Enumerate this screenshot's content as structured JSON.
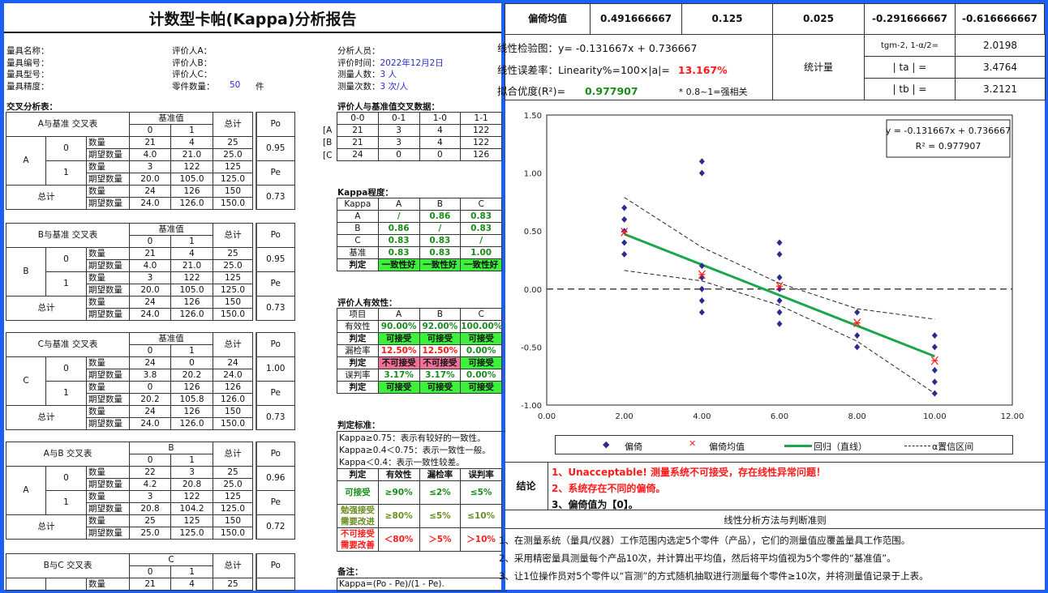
{
  "report": {
    "title": "计数型卡帕(Kappa)分析报告",
    "info_col1": [
      "量具名称：",
      "量具编号：",
      "量具型号：",
      "量具精度："
    ],
    "info_col2": [
      "评价人A：",
      "评价人B：",
      "评价人C："
    ],
    "parts_label": "零件数量：",
    "parts_value": "50",
    "parts_unit": "件",
    "info_col3": [
      {
        "label": "分析人员：",
        "value": ""
      },
      {
        "label": "评价时间：",
        "value": "2022年12月2日"
      },
      {
        "label": "测量人数：",
        "value": "3 人"
      },
      {
        "label": "测量次数：",
        "value": "3 次/人"
      }
    ],
    "cross_section_title": "交叉分析表：",
    "labels": {
      "total": "总计",
      "po": "Po",
      "pe": "Pe",
      "count": "数量",
      "expected": "期望数量"
    },
    "cross_tables": [
      {
        "title": "A与基准  交叉表",
        "ref": "基准值",
        "cols": [
          "0",
          "1"
        ],
        "rater": "A",
        "levels": [
          "0",
          "1"
        ],
        "rows": [
          [
            "21",
            "4",
            "25"
          ],
          [
            "4.0",
            "21.0",
            "25.0"
          ],
          [
            "3",
            "122",
            "125"
          ],
          [
            "20.0",
            "105.0",
            "125.0"
          ],
          [
            "24",
            "126",
            "150"
          ],
          [
            "24.0",
            "126.0",
            "150.0"
          ]
        ],
        "po": "0.95",
        "pe": "0.73"
      },
      {
        "title": "B与基准  交叉表",
        "ref": "基准值",
        "cols": [
          "0",
          "1"
        ],
        "rater": "B",
        "levels": [
          "0",
          "1"
        ],
        "rows": [
          [
            "21",
            "4",
            "25"
          ],
          [
            "4.0",
            "21.0",
            "25.0"
          ],
          [
            "3",
            "122",
            "125"
          ],
          [
            "20.0",
            "105.0",
            "125.0"
          ],
          [
            "24",
            "126",
            "150"
          ],
          [
            "24.0",
            "126.0",
            "150.0"
          ]
        ],
        "po": "0.95",
        "pe": "0.73"
      },
      {
        "title": "C与基准  交叉表",
        "ref": "基准值",
        "cols": [
          "0",
          "1"
        ],
        "rater": "C",
        "levels": [
          "0",
          "1"
        ],
        "rows": [
          [
            "24",
            "0",
            "24"
          ],
          [
            "3.8",
            "20.2",
            "24.0"
          ],
          [
            "0",
            "126",
            "126"
          ],
          [
            "20.2",
            "105.8",
            "126.0"
          ],
          [
            "24",
            "126",
            "150"
          ],
          [
            "24.0",
            "126.0",
            "150.0"
          ]
        ],
        "po": "1.00",
        "pe": "0.73"
      },
      {
        "title": "A与B  交叉表",
        "ref": "B",
        "cols": [
          "0",
          "1"
        ],
        "rater": "A",
        "levels": [
          "0",
          "1"
        ],
        "rows": [
          [
            "22",
            "3",
            "25"
          ],
          [
            "4.2",
            "20.8",
            "25.0"
          ],
          [
            "3",
            "122",
            "125"
          ],
          [
            "20.8",
            "104.2",
            "125.0"
          ],
          [
            "25",
            "125",
            "150"
          ],
          [
            "25.0",
            "125.0",
            "150.0"
          ]
        ],
        "po": "0.96",
        "pe": "0.72"
      },
      {
        "title": "B与C  交叉表",
        "ref": "C",
        "cols": [
          "0",
          "1"
        ],
        "rows": [
          [
            "21",
            "4",
            "25"
          ]
        ]
      }
    ],
    "cross_data": {
      "title": "评价人与基准值交叉数据：",
      "header": [
        "0-0",
        "0-1",
        "1-0",
        "1-1"
      ],
      "rows": [
        {
          "label": "[A",
          "values": [
            "21",
            "3",
            "4",
            "122"
          ]
        },
        {
          "label": "[B",
          "values": [
            "21",
            "3",
            "4",
            "122"
          ]
        },
        {
          "label": "[C",
          "values": [
            "24",
            "0",
            "0",
            "126"
          ]
        }
      ]
    },
    "kappa": {
      "title": "Kappa程度：",
      "header": [
        "Kappa",
        "A",
        "B",
        "C"
      ],
      "rows": [
        {
          "label": "A",
          "values": [
            "/",
            "0.86",
            "0.83"
          ]
        },
        {
          "label": "B",
          "values": [
            "0.86",
            "/",
            "0.83"
          ]
        },
        {
          "label": "C",
          "values": [
            "0.83",
            "0.83",
            "/"
          ]
        },
        {
          "label": "基准",
          "values": [
            "0.83",
            "0.83",
            "1.00"
          ]
        }
      ],
      "verdict_label": "判定",
      "verdicts": [
        "一致性好",
        "一致性好",
        "一致性好"
      ]
    },
    "effectiveness": {
      "title": "评价人有效性：",
      "header": [
        "项目",
        "A",
        "B",
        "C"
      ],
      "rows": [
        {
          "label": "有效性",
          "values": [
            "90.00%",
            "92.00%",
            "100.00%"
          ],
          "pass": [
            true,
            true,
            true
          ]
        },
        {
          "label": "判定",
          "values": [
            "可接受",
            "可接受",
            "可接受"
          ],
          "pass": [
            true,
            true,
            true
          ],
          "verdict": true
        },
        {
          "label": "漏检率",
          "values": [
            "12.50%",
            "12.50%",
            "0.00%"
          ],
          "pass": [
            false,
            false,
            true
          ]
        },
        {
          "label": "判定",
          "values": [
            "不可接受",
            "不可接受",
            "可接受"
          ],
          "pass": [
            false,
            false,
            true
          ],
          "verdict": true
        },
        {
          "label": "误判率",
          "values": [
            "3.17%",
            "3.17%",
            "0.00%"
          ],
          "pass": [
            true,
            true,
            true
          ]
        },
        {
          "label": "判定",
          "values": [
            "可接受",
            "可接受",
            "可接受"
          ],
          "pass": [
            true,
            true,
            true
          ],
          "verdict": true
        }
      ]
    },
    "criteria": {
      "title": "判定标准：",
      "lines": [
        "Kappa≥0.75：表示有较好的一致性。",
        "Kappa≥0.4＜0.75：表示一致性一般。",
        "Kappa＜0.4：表示一致性较差。"
      ],
      "header": [
        "判定",
        "有效性",
        "漏检率",
        "误判率"
      ],
      "rows": [
        {
          "label": "可接受",
          "values": [
            "≥90%",
            "≤2%",
            "≤5%"
          ],
          "color": "#1a8c1a"
        },
        {
          "label": "勉强接受 需要改进",
          "values": [
            "≥80%",
            "≤5%",
            "≤10%"
          ],
          "color": "#6b8e23"
        },
        {
          "label": "不可接受 需要改善",
          "values": [
            "＜80%",
            "＞5%",
            "＞10%"
          ],
          "color": "#ff1a1a"
        }
      ]
    },
    "notes": {
      "title": "备注：",
      "text": "Kappa=(Po - Pe)/(1 - Pe)."
    }
  },
  "linearity": {
    "bias_mean_label": "偏倚均值",
    "bias_means": [
      "0.491666667",
      "0.125",
      "0.025",
      "-0.291666667",
      "-0.616666667"
    ],
    "equation_line": "线性检验图：y= -0.131667x + 0.736667",
    "linearity_label": "线性误差率：Linearity%=100×|a|=",
    "linearity_value": "13.167%",
    "r2_label": "拟合优度(R²)=",
    "r2_value": "0.977907",
    "r2_note": "* 0.8~1=强相关",
    "stat_label": "统计量",
    "stats": [
      {
        "label": "tgm-2, 1-α/2=",
        "value": "2.0198"
      },
      {
        "label": "| ta | =",
        "value": "3.4764"
      },
      {
        "label": "| tb | =",
        "value": "3.2121"
      }
    ],
    "conclusion_label": "结论",
    "conclusions": [
      {
        "text": "1、Unacceptable! 测量系统不可接受，存在线性异常问题！",
        "color": "#ff1a1a"
      },
      {
        "text": "2、系统存在不同的偏倚。",
        "color": "#ff1a1a"
      },
      {
        "text": "3、偏倚值为【0】。",
        "color": "#111111"
      }
    ],
    "method_title": "线性分析方法与判断准则",
    "method_lines": [
      "1、在测量系统（量具/仪器）工作范围内选定5个零件（产品），它们的测量值应覆盖量具工作范围。",
      "2、采用精密量具测量每个产品10次，并计算出平均值，然后将平均值视为5个零件的“基准值”。",
      "3、让1位操作员对5个零件以“盲测”的方式随机抽取进行测量每个零件≥10次，并将测量值记录于上表。"
    ]
  },
  "chart_data": {
    "type": "scatter",
    "xlim": [
      0,
      12
    ],
    "ylim": [
      -1,
      1.5
    ],
    "xticks": [
      "0.00",
      "2.00",
      "4.00",
      "6.00",
      "8.00",
      "10.00",
      "12.00"
    ],
    "yticks": [
      "1.50",
      "1.00",
      "0.50",
      "0.00",
      "-0.50",
      "-1.00"
    ],
    "trendline_label": [
      "y = -0.131667x + 0.736667",
      "R² = 0.977907"
    ],
    "legend": [
      "偏倚",
      "偏倚均值",
      "回归（直线）",
      "α置信区间"
    ],
    "series": [
      {
        "name": "偏倚",
        "color": "#2b2b90",
        "points": [
          [
            2,
            0.7
          ],
          [
            2,
            0.6
          ],
          [
            2,
            0.5
          ],
          [
            2,
            0.4
          ],
          [
            2,
            0.3
          ],
          [
            4,
            1.1
          ],
          [
            4,
            1.0
          ],
          [
            4,
            0.2
          ],
          [
            4,
            0.1
          ],
          [
            4,
            0.0
          ],
          [
            4,
            -0.1
          ],
          [
            4,
            -0.2
          ],
          [
            6,
            0.4
          ],
          [
            6,
            0.3
          ],
          [
            6,
            0.1
          ],
          [
            6,
            0.0
          ],
          [
            6,
            -0.1
          ],
          [
            6,
            -0.2
          ],
          [
            6,
            -0.3
          ],
          [
            8,
            -0.2
          ],
          [
            8,
            -0.4
          ],
          [
            8,
            -0.5
          ],
          [
            10,
            -0.4
          ],
          [
            10,
            -0.5
          ],
          [
            10,
            -0.7
          ],
          [
            10,
            -0.8
          ],
          [
            10,
            -0.9
          ]
        ]
      },
      {
        "name": "偏倚均值",
        "color": "#ff2020",
        "points": [
          [
            2,
            0.491666667
          ],
          [
            4,
            0.125
          ],
          [
            6,
            0.025
          ],
          [
            8,
            -0.291666667
          ],
          [
            10,
            -0.616666667
          ]
        ]
      },
      {
        "name": "回归（直线）",
        "color": "#1aa64a",
        "slope": -0.131667,
        "intercept": 0.736667,
        "x": [
          2,
          10
        ]
      },
      {
        "name": "α置信区间",
        "color": "#222222",
        "upper": [
          [
            2,
            0.79
          ],
          [
            4,
            0.36
          ],
          [
            6,
            0.05
          ],
          [
            8,
            -0.17
          ],
          [
            10,
            -0.26
          ]
        ],
        "lower": [
          [
            2,
            0.16
          ],
          [
            4,
            0.07
          ],
          [
            6,
            -0.14
          ],
          [
            8,
            -0.45
          ],
          [
            10,
            -0.9
          ]
        ]
      }
    ],
    "reference_line_y": 0
  }
}
